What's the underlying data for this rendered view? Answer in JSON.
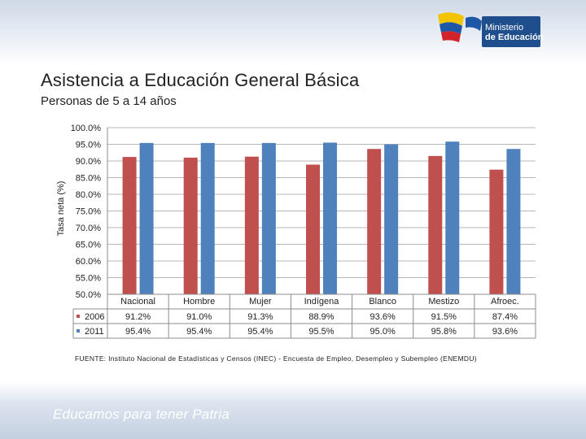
{
  "header": {
    "logo_line1": "Ministerio",
    "logo_line2": "de Educación"
  },
  "title": "Asistencia a Educación General Básica",
  "subtitle": "Personas de 5 a 14 años",
  "footer": {
    "source": "FUENTE: Instituto Nacional de Estadísticas y Censos (INEC) - Encuesta de Empleo, Desempleo y Subempleo (ENEMDU)",
    "slogan": "Educamos para tener Patria"
  },
  "colors": {
    "series_2006": "#c0504d",
    "series_2011": "#4f81bd"
  },
  "chart_data": {
    "type": "bar",
    "title": "Asistencia a Educación General Básica",
    "ylabel": "Tasa neta (%)",
    "xlabel": "",
    "ylim": [
      50,
      100
    ],
    "yticks": [
      "100.0%",
      "95.0%",
      "90.0%",
      "85.0%",
      "80.0%",
      "75.0%",
      "70.0%",
      "65.0%",
      "60.0%",
      "55.0%",
      "50.0%"
    ],
    "grid": true,
    "categories": [
      "Nacional",
      "Hombre",
      "Mujer",
      "Indígena",
      "Blanco",
      "Mestizo",
      "Afroec."
    ],
    "series": [
      {
        "name": "2006",
        "values": [
          91.2,
          91.0,
          91.3,
          88.9,
          93.6,
          91.5,
          87.4
        ],
        "labels": [
          "91.2%",
          "91.0%",
          "91.3%",
          "88.9%",
          "93.6%",
          "91.5%",
          "87.4%"
        ]
      },
      {
        "name": "2011",
        "values": [
          95.4,
          95.4,
          95.4,
          95.5,
          95.0,
          95.8,
          93.6
        ],
        "labels": [
          "95.4%",
          "95.4%",
          "95.4%",
          "95.5%",
          "95.0%",
          "95.8%",
          "93.6%"
        ]
      }
    ],
    "legend": "data-table-left"
  }
}
